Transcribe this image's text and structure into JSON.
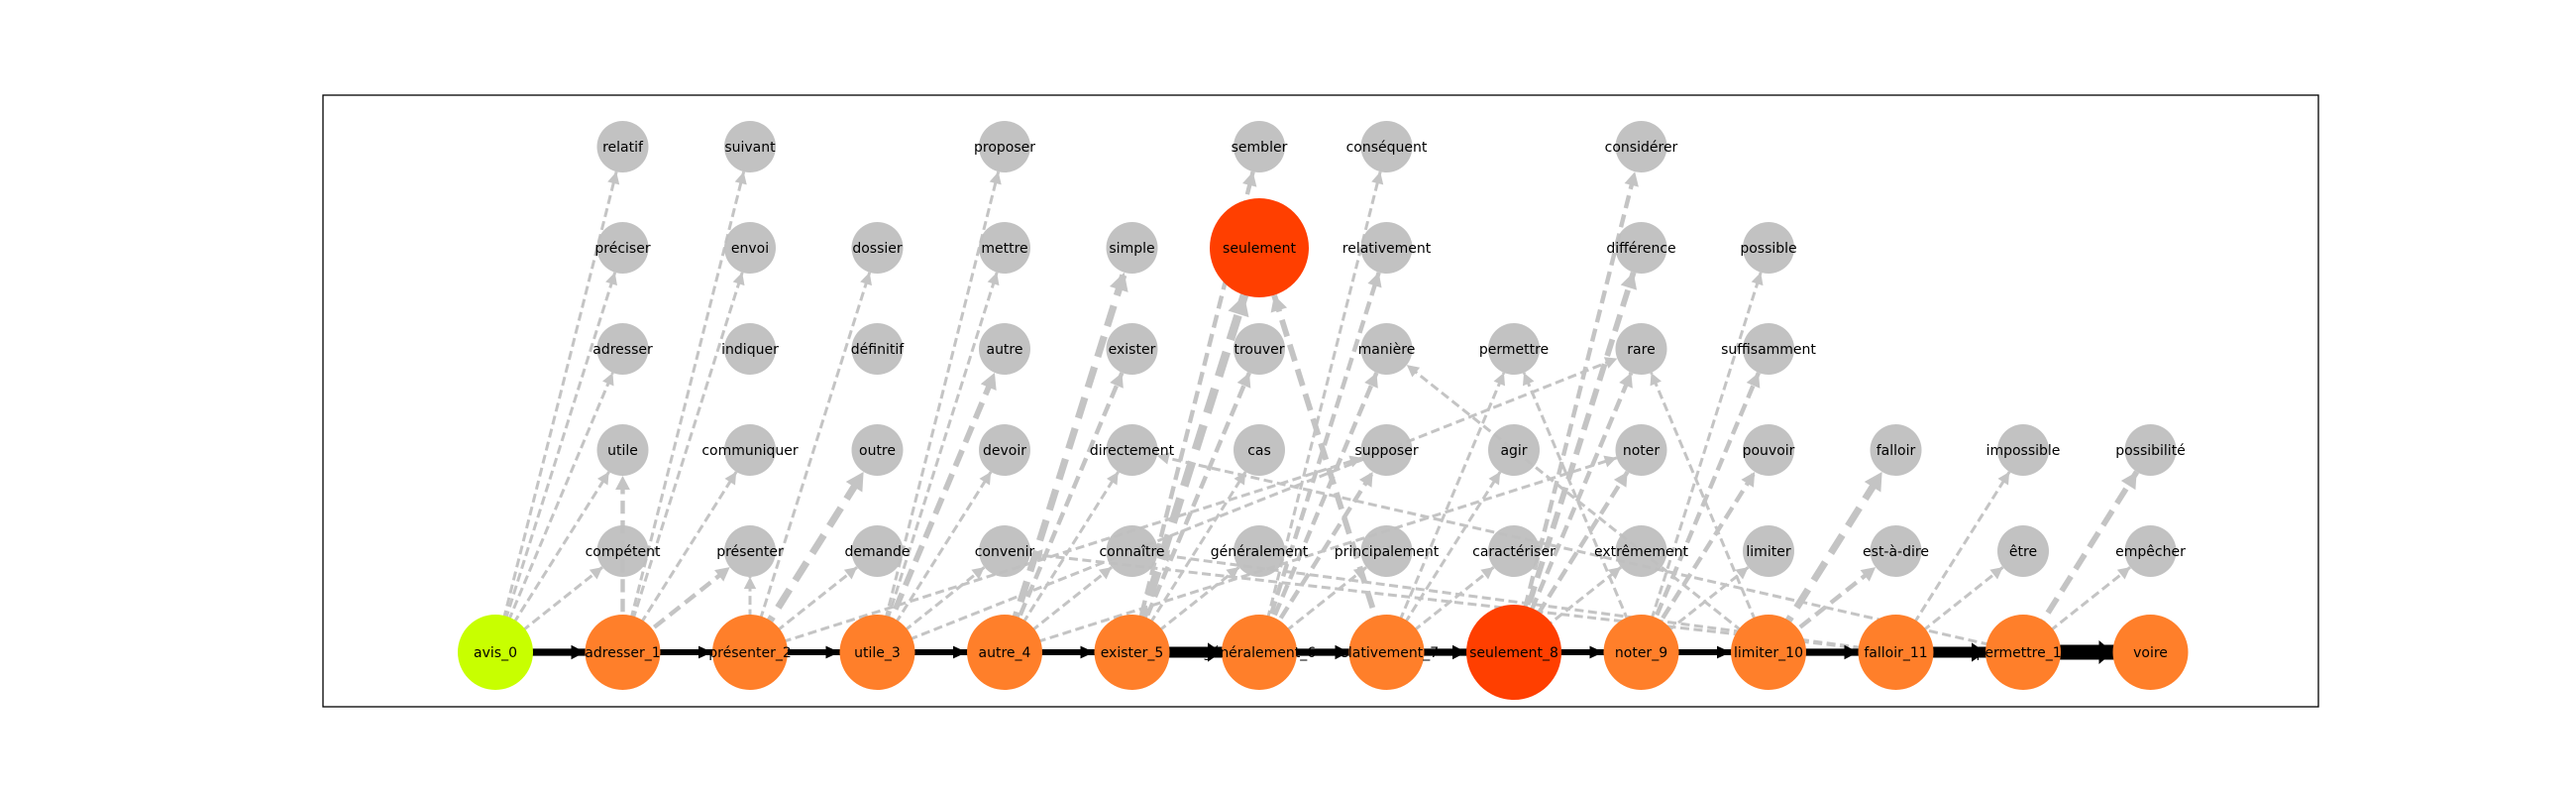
{
  "colors": {
    "start_node": "#c8ff00",
    "chain_node": "#ff7f2a",
    "peak_node": "#ff3f00",
    "context_node": "#bfbfbf",
    "chain_edge": "#000000",
    "context_edge": "#c4c4c4",
    "frame": "#000000"
  },
  "chain": [
    {
      "id": "avis_0",
      "label": "avis_0",
      "kind": "start"
    },
    {
      "id": "adresser_1",
      "label": "adresser_1",
      "kind": "chain"
    },
    {
      "id": "presenter_2",
      "label": "présenter_2",
      "kind": "chain"
    },
    {
      "id": "utile_3",
      "label": "utile_3",
      "kind": "chain"
    },
    {
      "id": "autre_4",
      "label": "autre_4",
      "kind": "chain"
    },
    {
      "id": "exister_5",
      "label": "exister_5",
      "kind": "chain"
    },
    {
      "id": "generalement_6",
      "label": "généralement_6",
      "kind": "chain"
    },
    {
      "id": "relativement_7",
      "label": "relativement_7",
      "kind": "chain"
    },
    {
      "id": "seulement_8",
      "label": "seulement_8",
      "kind": "peak"
    },
    {
      "id": "noter_9",
      "label": "noter_9",
      "kind": "chain"
    },
    {
      "id": "limiter_10",
      "label": "limiter_10",
      "kind": "chain"
    },
    {
      "id": "falloir_11",
      "label": "falloir_11",
      "kind": "chain"
    },
    {
      "id": "permettre_12",
      "label": "permettre_12",
      "kind": "chain"
    },
    {
      "id": "voire",
      "label": "voire",
      "kind": "chain"
    }
  ],
  "context_columns": [
    {
      "col": 1,
      "words": [
        "compétent",
        "utile",
        "adresser",
        "préciser",
        "relatif"
      ]
    },
    {
      "col": 2,
      "words": [
        "présenter",
        "communiquer",
        "indiquer",
        "envoi",
        "suivant"
      ]
    },
    {
      "col": 3,
      "words": [
        "demande",
        "outre",
        "définitif",
        "dossier",
        null
      ]
    },
    {
      "col": 4,
      "words": [
        "convenir",
        "devoir",
        "autre",
        "mettre",
        "proposer"
      ]
    },
    {
      "col": 5,
      "words": [
        "connaître",
        "directement",
        "exister",
        "simple",
        null
      ]
    },
    {
      "col": 6,
      "words": [
        "généralement",
        "cas",
        "trouver",
        "seulement",
        "sembler"
      ]
    },
    {
      "col": 7,
      "words": [
        "principalement",
        "supposer",
        "manière",
        "relativement",
        "conséquent"
      ]
    },
    {
      "col": 8,
      "words": [
        "caractériser",
        "agir",
        "permettre",
        null,
        null
      ]
    },
    {
      "col": 9,
      "words": [
        "extrêmement",
        "noter",
        "rare",
        "différence",
        "considérer"
      ]
    },
    {
      "col": 10,
      "words": [
        "limiter",
        "pouvoir",
        "suffisamment",
        "possible",
        null
      ]
    },
    {
      "col": 11,
      "words": [
        "est-à-dire",
        "falloir",
        null,
        null,
        null
      ]
    },
    {
      "col": 12,
      "words": [
        "être",
        "impossible",
        null,
        null,
        null
      ]
    },
    {
      "col": 13,
      "words": [
        "empêcher",
        "possibilité",
        null,
        null,
        null
      ]
    }
  ],
  "highlighted_context": [
    {
      "col": 6,
      "row": 3,
      "label": "seulement"
    }
  ],
  "context_edges": [
    [
      1,
      0,
      1,
      0,
      1
    ],
    [
      1,
      0,
      1,
      1,
      1
    ],
    [
      1,
      0,
      1,
      2,
      1
    ],
    [
      1,
      0,
      1,
      3,
      1
    ],
    [
      1,
      0,
      1,
      4,
      1
    ],
    [
      2,
      1,
      1,
      1,
      2
    ],
    [
      2,
      1,
      2,
      0,
      2
    ],
    [
      2,
      1,
      2,
      1,
      1
    ],
    [
      2,
      1,
      2,
      3,
      1
    ],
    [
      2,
      1,
      2,
      4,
      1
    ],
    [
      3,
      2,
      2,
      0,
      1
    ],
    [
      3,
      2,
      3,
      0,
      1
    ],
    [
      3,
      2,
      3,
      1,
      4
    ],
    [
      3,
      2,
      3,
      3,
      1
    ],
    [
      3,
      2,
      7,
      1,
      1
    ],
    [
      4,
      3,
      4,
      0,
      1
    ],
    [
      4,
      3,
      4,
      1,
      1
    ],
    [
      4,
      3,
      4,
      2,
      3
    ],
    [
      4,
      3,
      4,
      3,
      1
    ],
    [
      4,
      3,
      4,
      4,
      1
    ],
    [
      4,
      3,
      9,
      2,
      1
    ],
    [
      5,
      4,
      5,
      0,
      1
    ],
    [
      5,
      4,
      5,
      1,
      1
    ],
    [
      5,
      4,
      5,
      2,
      2
    ],
    [
      5,
      4,
      5,
      3,
      4
    ],
    [
      5,
      4,
      9,
      1,
      1
    ],
    [
      6,
      5,
      6,
      0,
      1
    ],
    [
      6,
      5,
      6,
      1,
      1
    ],
    [
      6,
      5,
      6,
      2,
      2
    ],
    [
      6,
      5,
      6,
      3,
      5
    ],
    [
      6,
      5,
      6,
      4,
      2
    ],
    [
      7,
      6,
      7,
      0,
      1
    ],
    [
      7,
      6,
      7,
      1,
      2
    ],
    [
      7,
      6,
      7,
      2,
      2
    ],
    [
      7,
      6,
      7,
      3,
      2
    ],
    [
      7,
      6,
      7,
      4,
      1
    ],
    [
      8,
      7,
      8,
      0,
      1
    ],
    [
      8,
      7,
      8,
      1,
      1
    ],
    [
      8,
      7,
      8,
      2,
      1
    ],
    [
      8,
      7,
      6,
      3,
      3
    ],
    [
      9,
      8,
      9,
      0,
      1
    ],
    [
      9,
      8,
      9,
      1,
      2
    ],
    [
      9,
      8,
      9,
      2,
      2
    ],
    [
      9,
      8,
      9,
      3,
      3
    ],
    [
      9,
      8,
      9,
      4,
      2
    ],
    [
      10,
      9,
      10,
      0,
      1
    ],
    [
      10,
      9,
      10,
      1,
      2
    ],
    [
      10,
      9,
      10,
      2,
      2
    ],
    [
      10,
      9,
      10,
      3,
      1
    ],
    [
      10,
      9,
      8,
      2,
      1
    ],
    [
      11,
      10,
      11,
      0,
      2
    ],
    [
      11,
      10,
      11,
      1,
      4
    ],
    [
      11,
      10,
      9,
      2,
      1
    ],
    [
      11,
      10,
      7,
      2,
      1
    ],
    [
      12,
      11,
      12,
      0,
      1
    ],
    [
      12,
      11,
      12,
      1,
      1
    ],
    [
      12,
      11,
      5,
      0,
      1
    ],
    [
      12,
      11,
      4,
      0,
      1
    ],
    [
      13,
      12,
      13,
      0,
      1
    ],
    [
      13,
      12,
      13,
      1,
      3
    ],
    [
      13,
      12,
      5,
      1,
      1
    ]
  ],
  "chain_edge_weights": [
    4,
    3,
    3,
    3,
    3,
    7,
    4,
    4,
    3,
    3,
    4,
    7,
    10
  ]
}
